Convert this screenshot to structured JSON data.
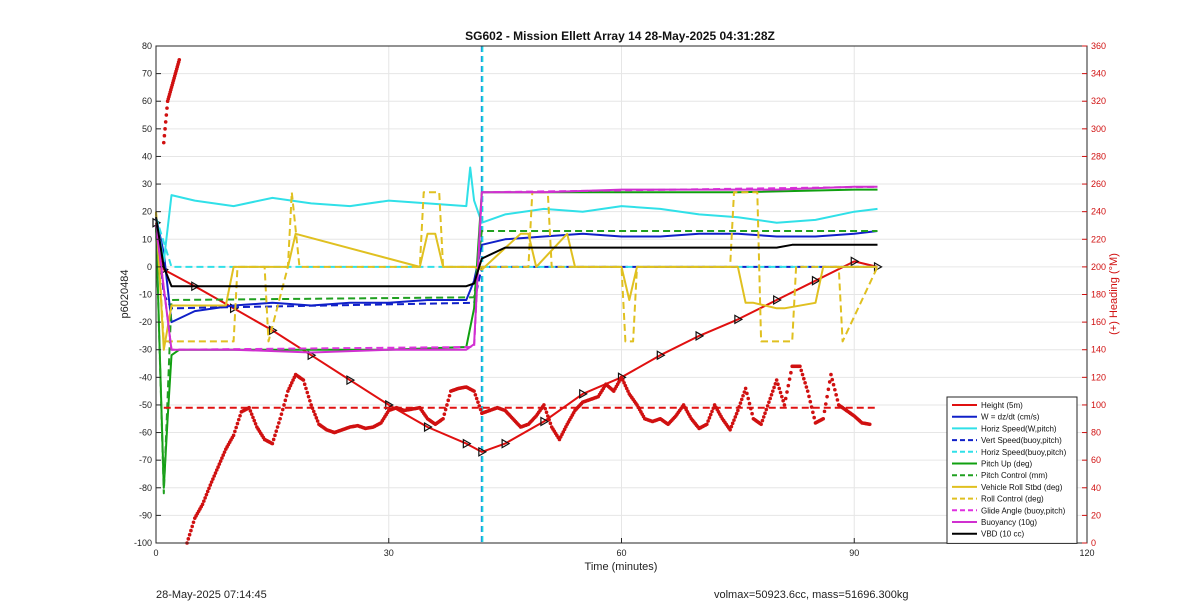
{
  "chart_data": {
    "type": "line",
    "title": "SG602 - Mission Ellett Array 14 28-May-2025 04:31:28Z",
    "xlabel": "Time (minutes)",
    "ylabel_left": "p6020484",
    "ylabel_right": "(+) Heading (°M)",
    "xlim": [
      0,
      120
    ],
    "ylim_left": [
      -100,
      80
    ],
    "ylim_right": [
      0,
      360
    ],
    "xticks": [
      0,
      30,
      60,
      90,
      120
    ],
    "yticks_left": [
      80,
      70,
      60,
      50,
      40,
      30,
      20,
      10,
      0,
      -10,
      -20,
      -30,
      -40,
      -50,
      -60,
      -70,
      -80,
      -90,
      -100
    ],
    "yticks_right": [
      360,
      340,
      320,
      300,
      280,
      260,
      240,
      220,
      200,
      180,
      160,
      140,
      120,
      100,
      80,
      60,
      40,
      20,
      0
    ],
    "grid": true,
    "legend_position": "bottom-right",
    "vertical_markers": [
      {
        "x": 42,
        "color": "#2030d0"
      },
      {
        "x": 42,
        "color": "#20d8e0"
      }
    ],
    "series": [
      {
        "name": "Height (5m)",
        "color": "#e01010",
        "style": "solid",
        "markers": true,
        "x": [
          0,
          1,
          5,
          10,
          15,
          20,
          25,
          30,
          35,
          40,
          42,
          45,
          50,
          55,
          60,
          65,
          70,
          75,
          80,
          85,
          90,
          93
        ],
        "y": [
          16,
          -1,
          -7,
          -15,
          -23,
          -32,
          -41,
          -50,
          -58,
          -64,
          -67,
          -64,
          -56,
          -46,
          -40,
          -32,
          -25,
          -19,
          -12,
          -5,
          2,
          0
        ]
      },
      {
        "name": "W = dz/dt (cm/s)",
        "color": "#1020c8",
        "style": "solid",
        "x": [
          0,
          1,
          2,
          5,
          10,
          15,
          20,
          25,
          30,
          35,
          40,
          41,
          42,
          45,
          50,
          55,
          60,
          65,
          70,
          75,
          80,
          85,
          90,
          93
        ],
        "y": [
          18,
          5,
          -20,
          -16,
          -14,
          -13,
          -14,
          -13,
          -13,
          -12,
          -12,
          -5,
          8,
          10,
          11,
          12,
          11,
          11,
          12,
          12,
          11,
          11,
          12,
          13
        ]
      },
      {
        "name": "Horiz Speed(W,pitch)",
        "color": "#30e0e8",
        "style": "solid",
        "x": [
          0,
          1,
          2,
          5,
          10,
          15,
          20,
          25,
          30,
          35,
          40,
          40.5,
          41,
          42,
          45,
          50,
          55,
          60,
          65,
          70,
          75,
          80,
          85,
          90,
          93
        ],
        "y": [
          18,
          2,
          26,
          24,
          22,
          25,
          23,
          22,
          24,
          23,
          22,
          36,
          24,
          16,
          19,
          21,
          20,
          22,
          21,
          19,
          18,
          16,
          17,
          20,
          21
        ]
      },
      {
        "name": "Vert Speed(buoy,pitch)",
        "color": "#1020c8",
        "style": "dashed",
        "x": [
          0,
          1,
          2,
          41,
          42,
          93
        ],
        "y": [
          18,
          -10,
          -15,
          -13,
          0,
          0
        ]
      },
      {
        "name": "Horiz Speed(buoy,pitch)",
        "color": "#30e0e8",
        "style": "dashed",
        "x": [
          0,
          2,
          41,
          42,
          93
        ],
        "y": [
          18,
          0,
          0,
          0,
          0
        ]
      },
      {
        "name": "Pitch Up (deg)",
        "color": "#10a010",
        "style": "solid",
        "x": [
          0,
          1,
          1.5,
          2,
          3,
          10,
          20,
          30,
          40,
          41,
          42,
          45,
          60,
          75,
          90,
          93
        ],
        "y": [
          15,
          -80,
          -55,
          -32,
          -30,
          -30,
          -30,
          -30,
          -29,
          -15,
          27,
          27,
          27,
          27,
          28,
          28
        ]
      },
      {
        "name": "Pitch Control (mm)",
        "color": "#20a020",
        "style": "dashed",
        "x": [
          0,
          1,
          2,
          41,
          42,
          93
        ],
        "y": [
          15,
          -82,
          -12,
          -11,
          13,
          13
        ]
      },
      {
        "name": "Vehicle Roll Stbd (deg)",
        "color": "#e0c020",
        "style": "solid",
        "x": [
          0,
          1,
          2,
          9,
          10,
          17,
          18,
          34,
          35,
          36,
          37,
          41,
          42,
          47,
          48,
          49,
          53,
          54,
          60,
          61,
          62,
          75,
          76,
          77,
          80,
          81,
          85,
          86,
          88,
          90,
          93
        ],
        "y": [
          20,
          -30,
          -14,
          -14,
          0,
          0,
          12,
          0,
          12,
          12,
          0,
          0,
          -1,
          12,
          12,
          0,
          12,
          0,
          0,
          -12,
          0,
          0,
          -13,
          -13,
          -15,
          -15,
          -13,
          0,
          0,
          0,
          0
        ]
      },
      {
        "name": "Roll Control (deg)",
        "color": "#e0c020",
        "style": "dashed",
        "x": [
          0,
          1,
          2,
          10,
          10.5,
          14,
          14.5,
          17,
          17.5,
          18.5,
          34,
          34.5,
          36.5,
          37,
          41,
          42,
          48,
          48.5,
          50.5,
          51,
          60,
          60.5,
          61.5,
          62,
          74,
          74.5,
          77.5,
          78,
          82,
          82.5,
          86,
          88,
          88.5,
          93
        ],
        "y": [
          20,
          -27,
          -27,
          -27,
          0,
          0,
          -27,
          0,
          27,
          0,
          0,
          27,
          27,
          0,
          0,
          0,
          0,
          27,
          27,
          0,
          0,
          -27,
          -27,
          0,
          0,
          27,
          27,
          -27,
          -27,
          0,
          0,
          0,
          -27,
          0
        ]
      },
      {
        "name": "Glide Angle (buoy,pitch)",
        "color": "#e030e0",
        "style": "dashed",
        "x": [
          0,
          2,
          41,
          42,
          93
        ],
        "y": [
          15,
          -30,
          -29,
          27,
          29
        ]
      },
      {
        "name": "Buoyancy (10g)",
        "color": "#d030d0",
        "style": "solid",
        "x": [
          0,
          2,
          10,
          20,
          30,
          40,
          41,
          42,
          50,
          60,
          70,
          80,
          90,
          93
        ],
        "y": [
          15,
          -30,
          -30,
          -31,
          -30,
          -30,
          -28,
          27,
          27,
          28,
          28,
          28,
          29,
          29
        ]
      },
      {
        "name": "VBD (10 cc)",
        "color": "#000000",
        "style": "solid",
        "x": [
          0,
          1,
          2,
          40,
          41,
          42,
          45,
          80,
          82,
          93
        ],
        "y": [
          18,
          0,
          -7,
          -7,
          -6,
          3,
          7,
          7,
          8,
          8
        ]
      }
    ],
    "heading_series": {
      "name": "",
      "color": "#d01010",
      "axis": "right",
      "x": [
        1,
        1.5,
        2,
        2.5,
        3,
        4,
        5,
        6,
        7,
        8,
        9,
        10,
        11,
        12,
        13,
        14,
        15,
        16,
        17,
        18,
        19,
        20,
        21,
        22,
        23,
        24,
        25,
        26,
        27,
        28,
        29,
        30,
        31,
        32,
        33,
        34,
        35,
        36,
        37,
        38,
        39,
        40,
        41,
        42,
        43,
        44,
        45,
        46,
        47,
        48,
        49,
        50,
        51,
        52,
        53,
        54,
        55,
        56,
        57,
        58,
        59,
        60,
        61,
        62,
        63,
        64,
        65,
        66,
        67,
        68,
        69,
        70,
        71,
        72,
        73,
        74,
        75,
        76,
        77,
        78,
        79,
        80,
        81,
        82,
        83,
        84,
        85,
        86,
        87,
        88,
        89,
        90,
        91,
        92
      ],
      "y": [
        290,
        320,
        330,
        340,
        350,
        0,
        18,
        28,
        42,
        55,
        68,
        78,
        95,
        98,
        84,
        75,
        72,
        90,
        110,
        122,
        118,
        100,
        86,
        82,
        80,
        82,
        84,
        85,
        83,
        84,
        87,
        96,
        98,
        96,
        97,
        98,
        90,
        86,
        90,
        110,
        112,
        113,
        110,
        94,
        96,
        98,
        96,
        90,
        84,
        86,
        92,
        100,
        84,
        75,
        86,
        96,
        102,
        104,
        106,
        115,
        110,
        120,
        108,
        100,
        90,
        88,
        90,
        86,
        92,
        100,
        90,
        83,
        86,
        100,
        90,
        82,
        96,
        112,
        90,
        86,
        102,
        118,
        100,
        128,
        128,
        110,
        87,
        90,
        122,
        100,
        96,
        92,
        87,
        86
      ]
    },
    "heading_reference": {
      "color": "#e01010",
      "y": 98
    },
    "footer_left": "28-May-2025 07:14:45",
    "footer_right": "volmax=50923.6cc, mass=51696.300kg"
  }
}
